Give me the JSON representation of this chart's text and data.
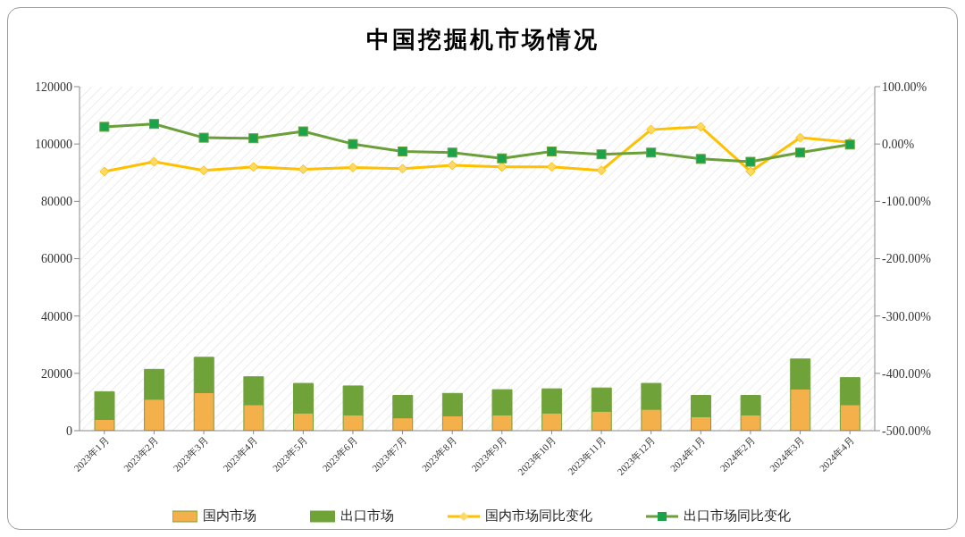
{
  "chart_data": {
    "type": "bar",
    "title": "中国挖掘机市场情况",
    "stacked": true,
    "categories": [
      "2023年1月",
      "2023年2月",
      "2023年3月",
      "2023年4月",
      "2023年5月",
      "2023年6月",
      "2023年7月",
      "2023年8月",
      "2023年9月",
      "2023年10月",
      "2023年11月",
      "2023年12月",
      "2024年1月",
      "2024年2月",
      "2024年3月",
      "2024年4月"
    ],
    "series": [
      {
        "name": "国内市场",
        "color": "#f4b04a",
        "values": [
          3900,
          11000,
          13300,
          9100,
          6200,
          5500,
          4500,
          5200,
          5500,
          6200,
          6800,
          7500,
          4900,
          5500,
          14600,
          9100
        ]
      },
      {
        "name": "出口市场",
        "color": "#70a23a",
        "values": [
          9700,
          10400,
          12300,
          9700,
          10300,
          10100,
          7800,
          7800,
          8800,
          8400,
          8100,
          9000,
          7400,
          6800,
          10400,
          9400
        ]
      },
      {
        "name": "国内市场同比变化",
        "type": "line",
        "axis": "y2",
        "marker": "diamond",
        "color": "#ffc000",
        "values": [
          -48,
          -31,
          -46,
          -40,
          -44,
          -41,
          -43,
          -37,
          -40,
          -40,
          -46,
          25,
          30,
          -48,
          11,
          3
        ]
      },
      {
        "name": "出口市场同比变化",
        "type": "line",
        "axis": "y2",
        "marker": "square",
        "color": "#6a9f3a",
        "values": [
          30,
          35,
          11,
          10,
          22,
          0,
          -13,
          -15,
          -25,
          -13,
          -18,
          -15,
          -26,
          -31,
          -15,
          -1
        ]
      }
    ],
    "ylim": [
      0,
      120000
    ],
    "yticks": [
      0,
      20000,
      40000,
      60000,
      80000,
      100000,
      120000
    ],
    "y2lim": [
      -500,
      100
    ],
    "y2ticks": [
      {
        "value": -500,
        "label": "-500.00%"
      },
      {
        "value": -400,
        "label": "-400.00%"
      },
      {
        "value": -300,
        "label": "-300.00%"
      },
      {
        "value": -200,
        "label": "-200.00%"
      },
      {
        "value": -100,
        "label": "-100.00%"
      },
      {
        "value": 0,
        "label": "0.00%"
      },
      {
        "value": 100,
        "label": "100.00%"
      }
    ],
    "grid": false,
    "legend": "bottom"
  }
}
